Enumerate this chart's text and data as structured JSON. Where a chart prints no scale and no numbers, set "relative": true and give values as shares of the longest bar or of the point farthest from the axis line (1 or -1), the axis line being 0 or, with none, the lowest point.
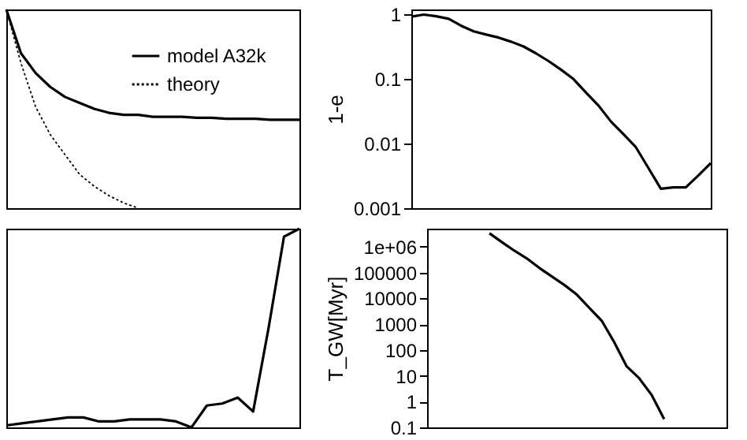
{
  "chart_data": [
    {
      "type": "line",
      "relative": true,
      "legend": "top right",
      "tick_labels": false,
      "grid": false,
      "marker": "none",
      "categories": [
        null,
        null,
        null,
        null,
        null,
        null,
        null,
        null,
        null,
        null,
        null,
        null,
        null,
        null,
        null,
        null,
        null,
        null,
        null,
        null,
        null
      ],
      "series": [
        {
          "name": "model A32k",
          "color": "#000000",
          "line_style": "solid",
          "values": [
            1.0,
            0.78,
            0.68,
            0.61,
            0.56,
            0.53,
            0.5,
            0.48,
            0.47,
            0.47,
            0.46,
            0.46,
            0.46,
            0.455,
            0.455,
            0.45,
            0.45,
            0.45,
            0.445,
            0.445,
            0.445
          ]
        },
        {
          "name": "theory",
          "color": "#000000",
          "line_style": "dotted",
          "values": [
            1.0,
            0.73,
            0.51,
            0.37,
            0.27,
            0.17,
            0.11,
            0.063,
            0.027,
            0.0,
            null,
            null,
            null,
            null,
            null,
            null,
            null,
            null,
            null,
            null,
            null
          ]
        }
      ]
    },
    {
      "type": "line",
      "log": "y",
      "ylabel": "1-e",
      "tick_labels": "y",
      "grid": false,
      "marker": "none",
      "ylim": [
        0.001,
        1.2
      ],
      "yticks": [
        0.001,
        0.01,
        0.1,
        1
      ],
      "categories": [
        null,
        null,
        null,
        null,
        null,
        null,
        null,
        null,
        null,
        null,
        null,
        null,
        null,
        null,
        null,
        null,
        null,
        null,
        null,
        null,
        null,
        null,
        null,
        null,
        null
      ],
      "series": [
        {
          "color": "#000000",
          "line_style": "solid",
          "values": [
            0.93,
            1.0,
            0.94,
            0.86,
            0.67,
            0.55,
            0.49,
            0.44,
            0.38,
            0.32,
            0.25,
            0.19,
            0.14,
            0.1,
            0.062,
            0.039,
            0.022,
            0.014,
            0.0088,
            0.0042,
            0.002,
            0.0021,
            0.0021,
            0.0032,
            0.005
          ]
        }
      ]
    },
    {
      "type": "line",
      "relative": true,
      "tick_labels": false,
      "grid": false,
      "marker": "none",
      "categories": [
        null,
        null,
        null,
        null,
        null,
        null,
        null,
        null,
        null,
        null,
        null,
        null,
        null,
        null,
        null,
        null,
        null,
        null,
        null,
        null
      ],
      "series": [
        {
          "color": "#000000",
          "line_style": "solid",
          "values": [
            0.01,
            0.02,
            0.03,
            0.04,
            0.05,
            0.05,
            0.03,
            0.03,
            0.04,
            0.04,
            0.04,
            0.03,
            0.0,
            0.11,
            0.12,
            0.15,
            0.08,
            0.5,
            0.96,
            1.0
          ]
        }
      ]
    },
    {
      "type": "line",
      "log": "y",
      "ylabel": "T_GW[Myr]",
      "tick_labels": "y",
      "grid": false,
      "marker": "none",
      "ylim": [
        0.1,
        5000000
      ],
      "yticks": [
        0.1,
        1,
        10,
        100,
        1000,
        10000,
        100000,
        {
          "value": 1000000,
          "label": "1e+06"
        }
      ],
      "categories": [
        null,
        null,
        null,
        null,
        null,
        null,
        null,
        null,
        null,
        null,
        null,
        null,
        null,
        null,
        null,
        null,
        null,
        null,
        null,
        null,
        null,
        null,
        null,
        null,
        null
      ],
      "series": [
        {
          "color": "#000000",
          "line_style": "solid",
          "values": [
            null,
            null,
            null,
            null,
            null,
            3300000,
            1500000,
            700000,
            350000,
            150000,
            70000,
            33000,
            14000,
            4300,
            1350,
            200,
            23,
            8,
            1.8,
            0.21,
            null,
            null,
            null,
            null,
            null
          ]
        }
      ]
    }
  ]
}
